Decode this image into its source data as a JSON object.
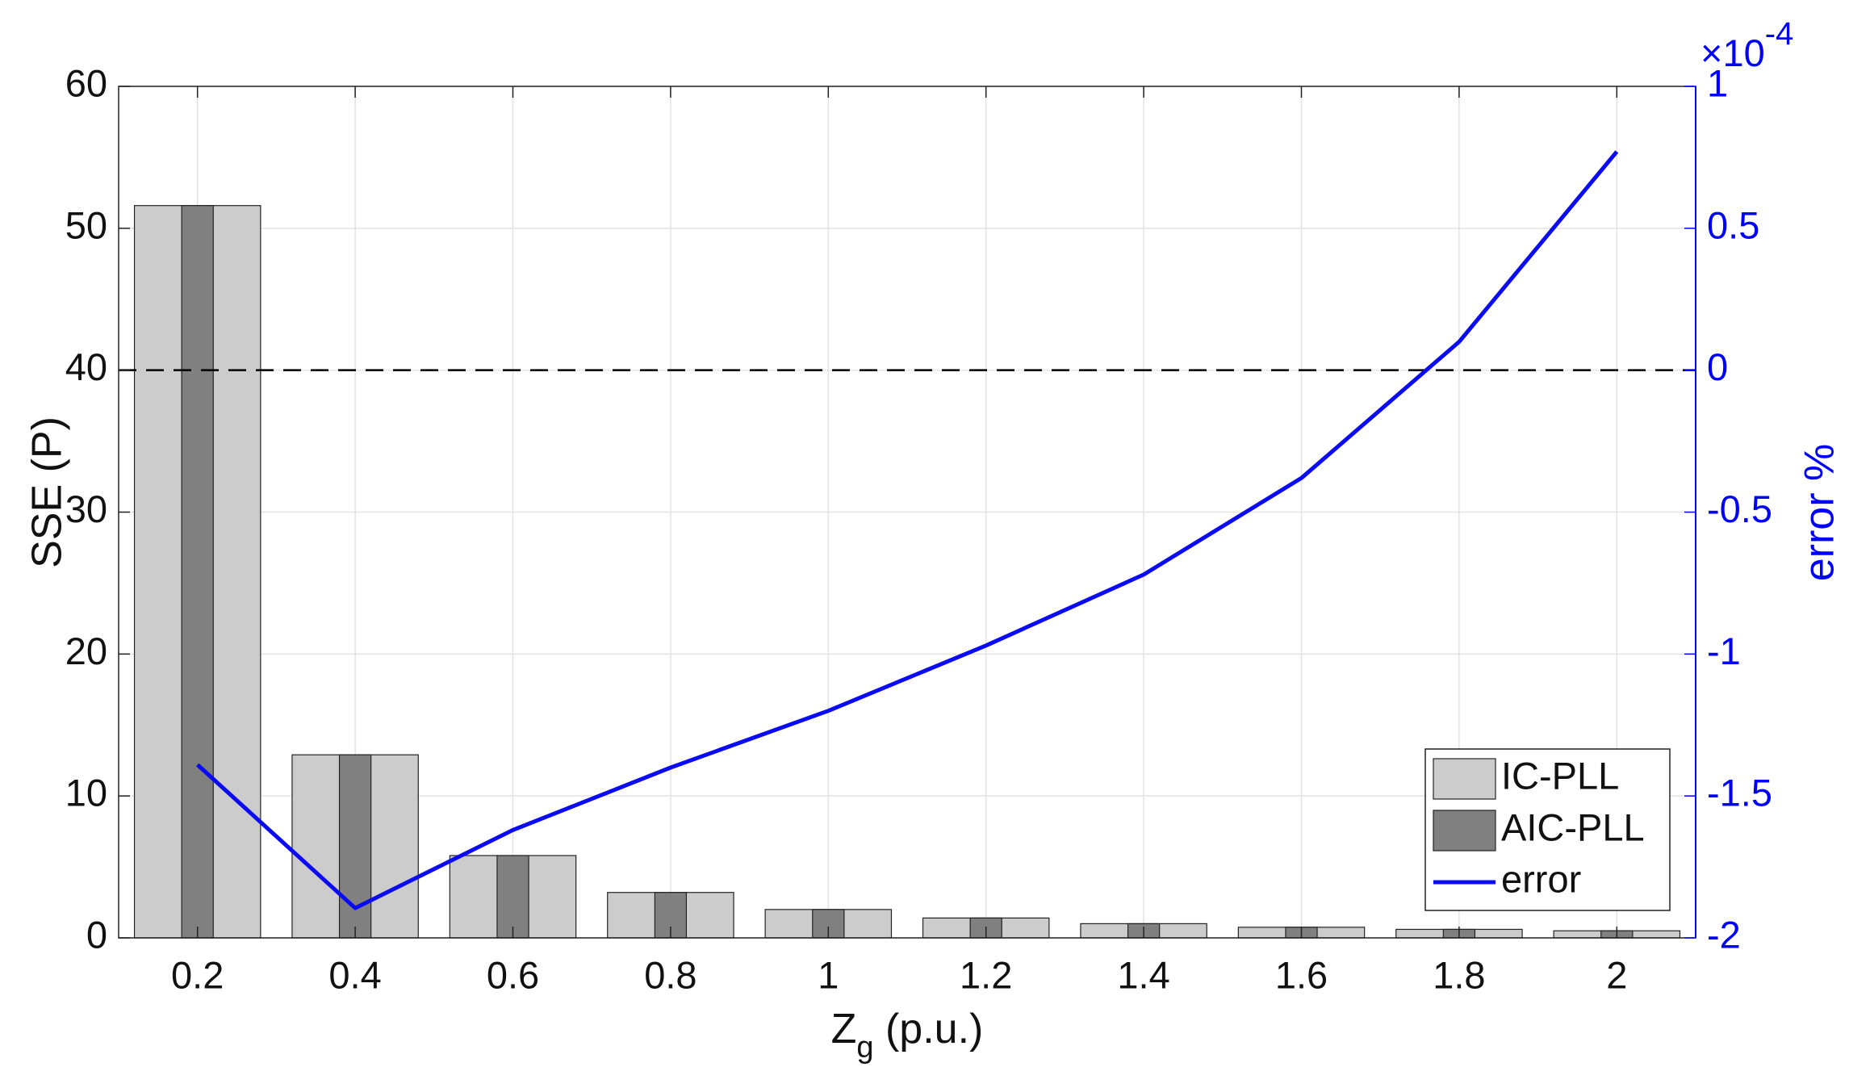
{
  "chart_data": {
    "type": "bar-line",
    "x": [
      0.2,
      0.4,
      0.6,
      0.8,
      1,
      1.2,
      1.4,
      1.6,
      1.8,
      2
    ],
    "xlim": [
      0.1,
      2.1
    ],
    "xticks": [
      0.2,
      0.4,
      0.6,
      0.8,
      1,
      1.2,
      1.4,
      1.6,
      1.8,
      2
    ],
    "xlabel": {
      "main": "Z",
      "sub": "g",
      "rest": " (p.u.)"
    },
    "ylabel": "SSE (P)",
    "ylim": [
      0,
      60
    ],
    "yticks": [
      0,
      10,
      20,
      30,
      40,
      50,
      60
    ],
    "y2label": "error %",
    "y2lim": [
      -2,
      1
    ],
    "y2ticks": [
      -2,
      -1.5,
      -1,
      -0.5,
      0,
      0.5,
      1
    ],
    "y2_exponent": {
      "base": "×10",
      "power": "-4"
    },
    "y2_reference_line": 0,
    "grid": true,
    "legend": "lower right",
    "series": [
      {
        "name": "IC-PLL",
        "type": "bar",
        "color": "#cccccc",
        "values": [
          51.6,
          12.9,
          5.8,
          3.2,
          2.0,
          1.4,
          1.0,
          0.75,
          0.6,
          0.5
        ]
      },
      {
        "name": "AIC-PLL",
        "type": "bar",
        "color": "#808080",
        "values": [
          51.6,
          12.9,
          5.8,
          3.2,
          2.0,
          1.4,
          1.0,
          0.75,
          0.6,
          0.5
        ]
      },
      {
        "name": "error",
        "type": "line",
        "axis": "y2",
        "color": "#0a0af5",
        "values": [
          -1.39,
          -1.895,
          -1.62,
          -1.4,
          -1.2,
          -0.97,
          -0.72,
          -0.38,
          0.1,
          0.77
        ]
      }
    ]
  }
}
